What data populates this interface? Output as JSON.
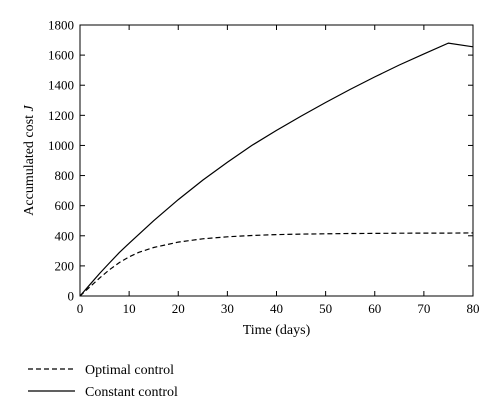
{
  "chart_data": {
    "type": "line",
    "xlabel": "Time (days)",
    "ylabel_text": "Accumulated cost ",
    "ylabel_symbol": "J",
    "xlim": [
      0,
      80
    ],
    "ylim": [
      0,
      1800
    ],
    "xticks": [
      "0",
      "10",
      "20",
      "30",
      "40",
      "50",
      "60",
      "70",
      "80"
    ],
    "yticks": [
      "0",
      "200",
      "400",
      "600",
      "800",
      "1000",
      "1200",
      "1400",
      "1600",
      "1800"
    ],
    "grid": false,
    "legend_position": "below",
    "series": [
      {
        "name": "Optimal control",
        "style": "dashed",
        "x": [
          0,
          2,
          4,
          6,
          8,
          10,
          12,
          15,
          20,
          25,
          30,
          35,
          40,
          45,
          50,
          55,
          60,
          65,
          70,
          75,
          80
        ],
        "y": [
          0,
          60,
          120,
          175,
          222,
          260,
          290,
          322,
          358,
          380,
          393,
          402,
          408,
          411,
          413,
          415,
          416,
          417,
          418,
          418,
          419
        ]
      },
      {
        "name": "Constant control",
        "style": "solid",
        "x": [
          0,
          2,
          4,
          6,
          8,
          10,
          15,
          20,
          25,
          30,
          35,
          40,
          45,
          50,
          55,
          60,
          65,
          70,
          75,
          80
        ],
        "y": [
          0,
          75,
          150,
          220,
          288,
          350,
          500,
          640,
          770,
          888,
          1000,
          1100,
          1195,
          1285,
          1372,
          1455,
          1534,
          1608,
          1680,
          1655
        ]
      }
    ]
  }
}
